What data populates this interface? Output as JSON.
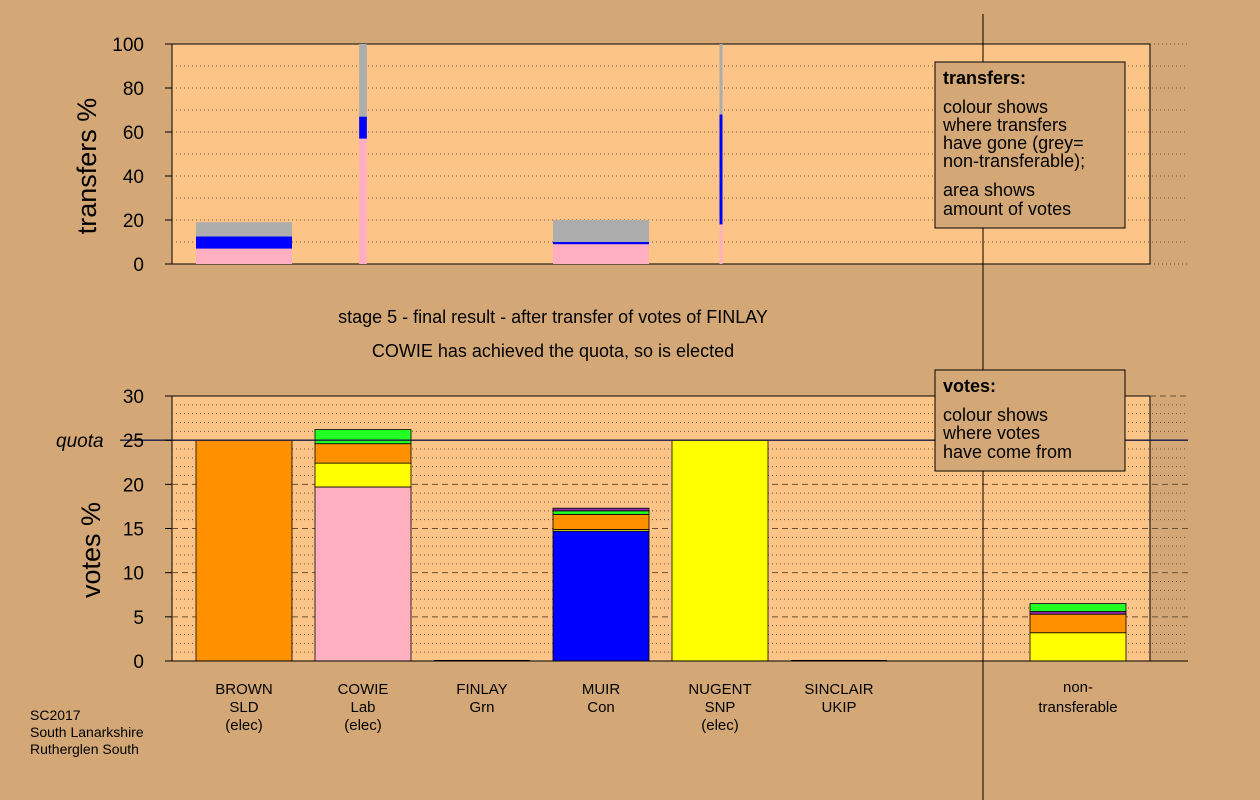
{
  "captions": {
    "line1": "stage 5 - final result - after transfer of votes of FINLAY",
    "line2": "COWIE has achieved the quota, so is elected"
  },
  "footer": [
    "SC2017",
    "South Lanarkshire",
    "Rutherglen South"
  ],
  "legend_transfers": {
    "title": "transfers:",
    "lines": [
      "colour shows",
      "where transfers",
      "have gone (grey=",
      "non-transferable);"
    ],
    "lines2": [
      "area shows",
      "amount of votes"
    ]
  },
  "legend_votes": {
    "title": "votes:",
    "lines": [
      "colour shows",
      "where votes",
      "have come from"
    ]
  },
  "colors": {
    "background": "#d4a876",
    "plot_bg": "#fdc487",
    "Lab": "#ffafc0",
    "Con": "#0000ff",
    "SNP": "#ffff00",
    "SLD": "#ff9100",
    "Grn": "#22ff22",
    "UKIP": "#8e2aa8",
    "nontransferable": "#adadad"
  },
  "chart_data": [
    {
      "type": "bar",
      "ylabel": "transfers %",
      "ylim": [
        0,
        100
      ],
      "yticks": [
        0,
        20,
        40,
        60,
        80,
        100
      ],
      "grid": "dotted",
      "categories": [
        "BROWN",
        "COWIE",
        "FINLAY",
        "MUIR",
        "NUGENT",
        "SINCLAIR"
      ],
      "columns": [
        {
          "candidate": "BROWN",
          "relative_width": 1.0,
          "segments": [
            {
              "party": "Lab",
              "value": 7
            },
            {
              "party": "Con",
              "value": 5.5
            },
            {
              "party": "nontransferable",
              "value": 6.5
            }
          ]
        },
        {
          "candidate": "COWIE",
          "relative_width": 0.08,
          "segments": [
            {
              "party": "Lab",
              "value": 57
            },
            {
              "party": "Con",
              "value": 10
            },
            {
              "party": "nontransferable",
              "value": 33
            }
          ]
        },
        {
          "candidate": "FINLAY",
          "relative_width": 0,
          "segments": []
        },
        {
          "candidate": "MUIR",
          "relative_width": 1.0,
          "segments": [
            {
              "party": "Lab",
              "value": 9
            },
            {
              "party": "Con",
              "value": 1
            },
            {
              "party": "nontransferable",
              "value": 10
            }
          ]
        },
        {
          "candidate": "NUGENT",
          "relative_width": 0.03,
          "segments": [
            {
              "party": "Lab",
              "value": 18
            },
            {
              "party": "Con",
              "value": 50
            },
            {
              "party": "nontransferable",
              "value": 32
            }
          ]
        },
        {
          "candidate": "SINCLAIR",
          "relative_width": 0,
          "segments": []
        }
      ]
    },
    {
      "type": "bar",
      "ylabel": "votes %",
      "ylim": [
        0,
        30
      ],
      "yticks": [
        0,
        5,
        10,
        15,
        20,
        25,
        30
      ],
      "quota": 25,
      "quota_label": "quota",
      "grid": "dotted-minor, dashed-major",
      "categories": [
        {
          "name": "BROWN",
          "party": "SLD",
          "status": "(elec)"
        },
        {
          "name": "COWIE",
          "party": "Lab",
          "status": "(elec)"
        },
        {
          "name": "FINLAY",
          "party": "Grn",
          "status": ""
        },
        {
          "name": "MUIR",
          "party": "Con",
          "status": ""
        },
        {
          "name": "NUGENT",
          "party": "SNP",
          "status": "(elec)"
        },
        {
          "name": "SINCLAIR",
          "party": "UKIP",
          "status": ""
        }
      ],
      "nontransferable_label": [
        "non-",
        "transferable"
      ],
      "stacks": [
        {
          "candidate": "BROWN",
          "segments": [
            {
              "party": "SLD",
              "value": 25.0
            }
          ]
        },
        {
          "candidate": "COWIE",
          "segments": [
            {
              "party": "Lab",
              "value": 19.7
            },
            {
              "party": "SNP",
              "value": 2.7
            },
            {
              "party": "SLD",
              "value": 2.2
            },
            {
              "party": "Grn",
              "value": 1.6
            }
          ]
        },
        {
          "candidate": "FINLAY",
          "segments": []
        },
        {
          "candidate": "MUIR",
          "segments": [
            {
              "party": "Con",
              "value": 14.7
            },
            {
              "party": "SNP",
              "value": 0.2
            },
            {
              "party": "SLD",
              "value": 1.7
            },
            {
              "party": "Grn",
              "value": 0.4
            },
            {
              "party": "UKIP",
              "value": 0.3
            }
          ]
        },
        {
          "candidate": "NUGENT",
          "segments": [
            {
              "party": "SNP",
              "value": 25.0
            }
          ]
        },
        {
          "candidate": "SINCLAIR",
          "segments": []
        },
        {
          "candidate": "nontransferable",
          "segments": [
            {
              "party": "SNP",
              "value": 3.2
            },
            {
              "party": "SLD",
              "value": 2.1
            },
            {
              "party": "UKIP",
              "value": 0.3
            },
            {
              "party": "Grn",
              "value": 0.9
            }
          ]
        }
      ]
    }
  ]
}
